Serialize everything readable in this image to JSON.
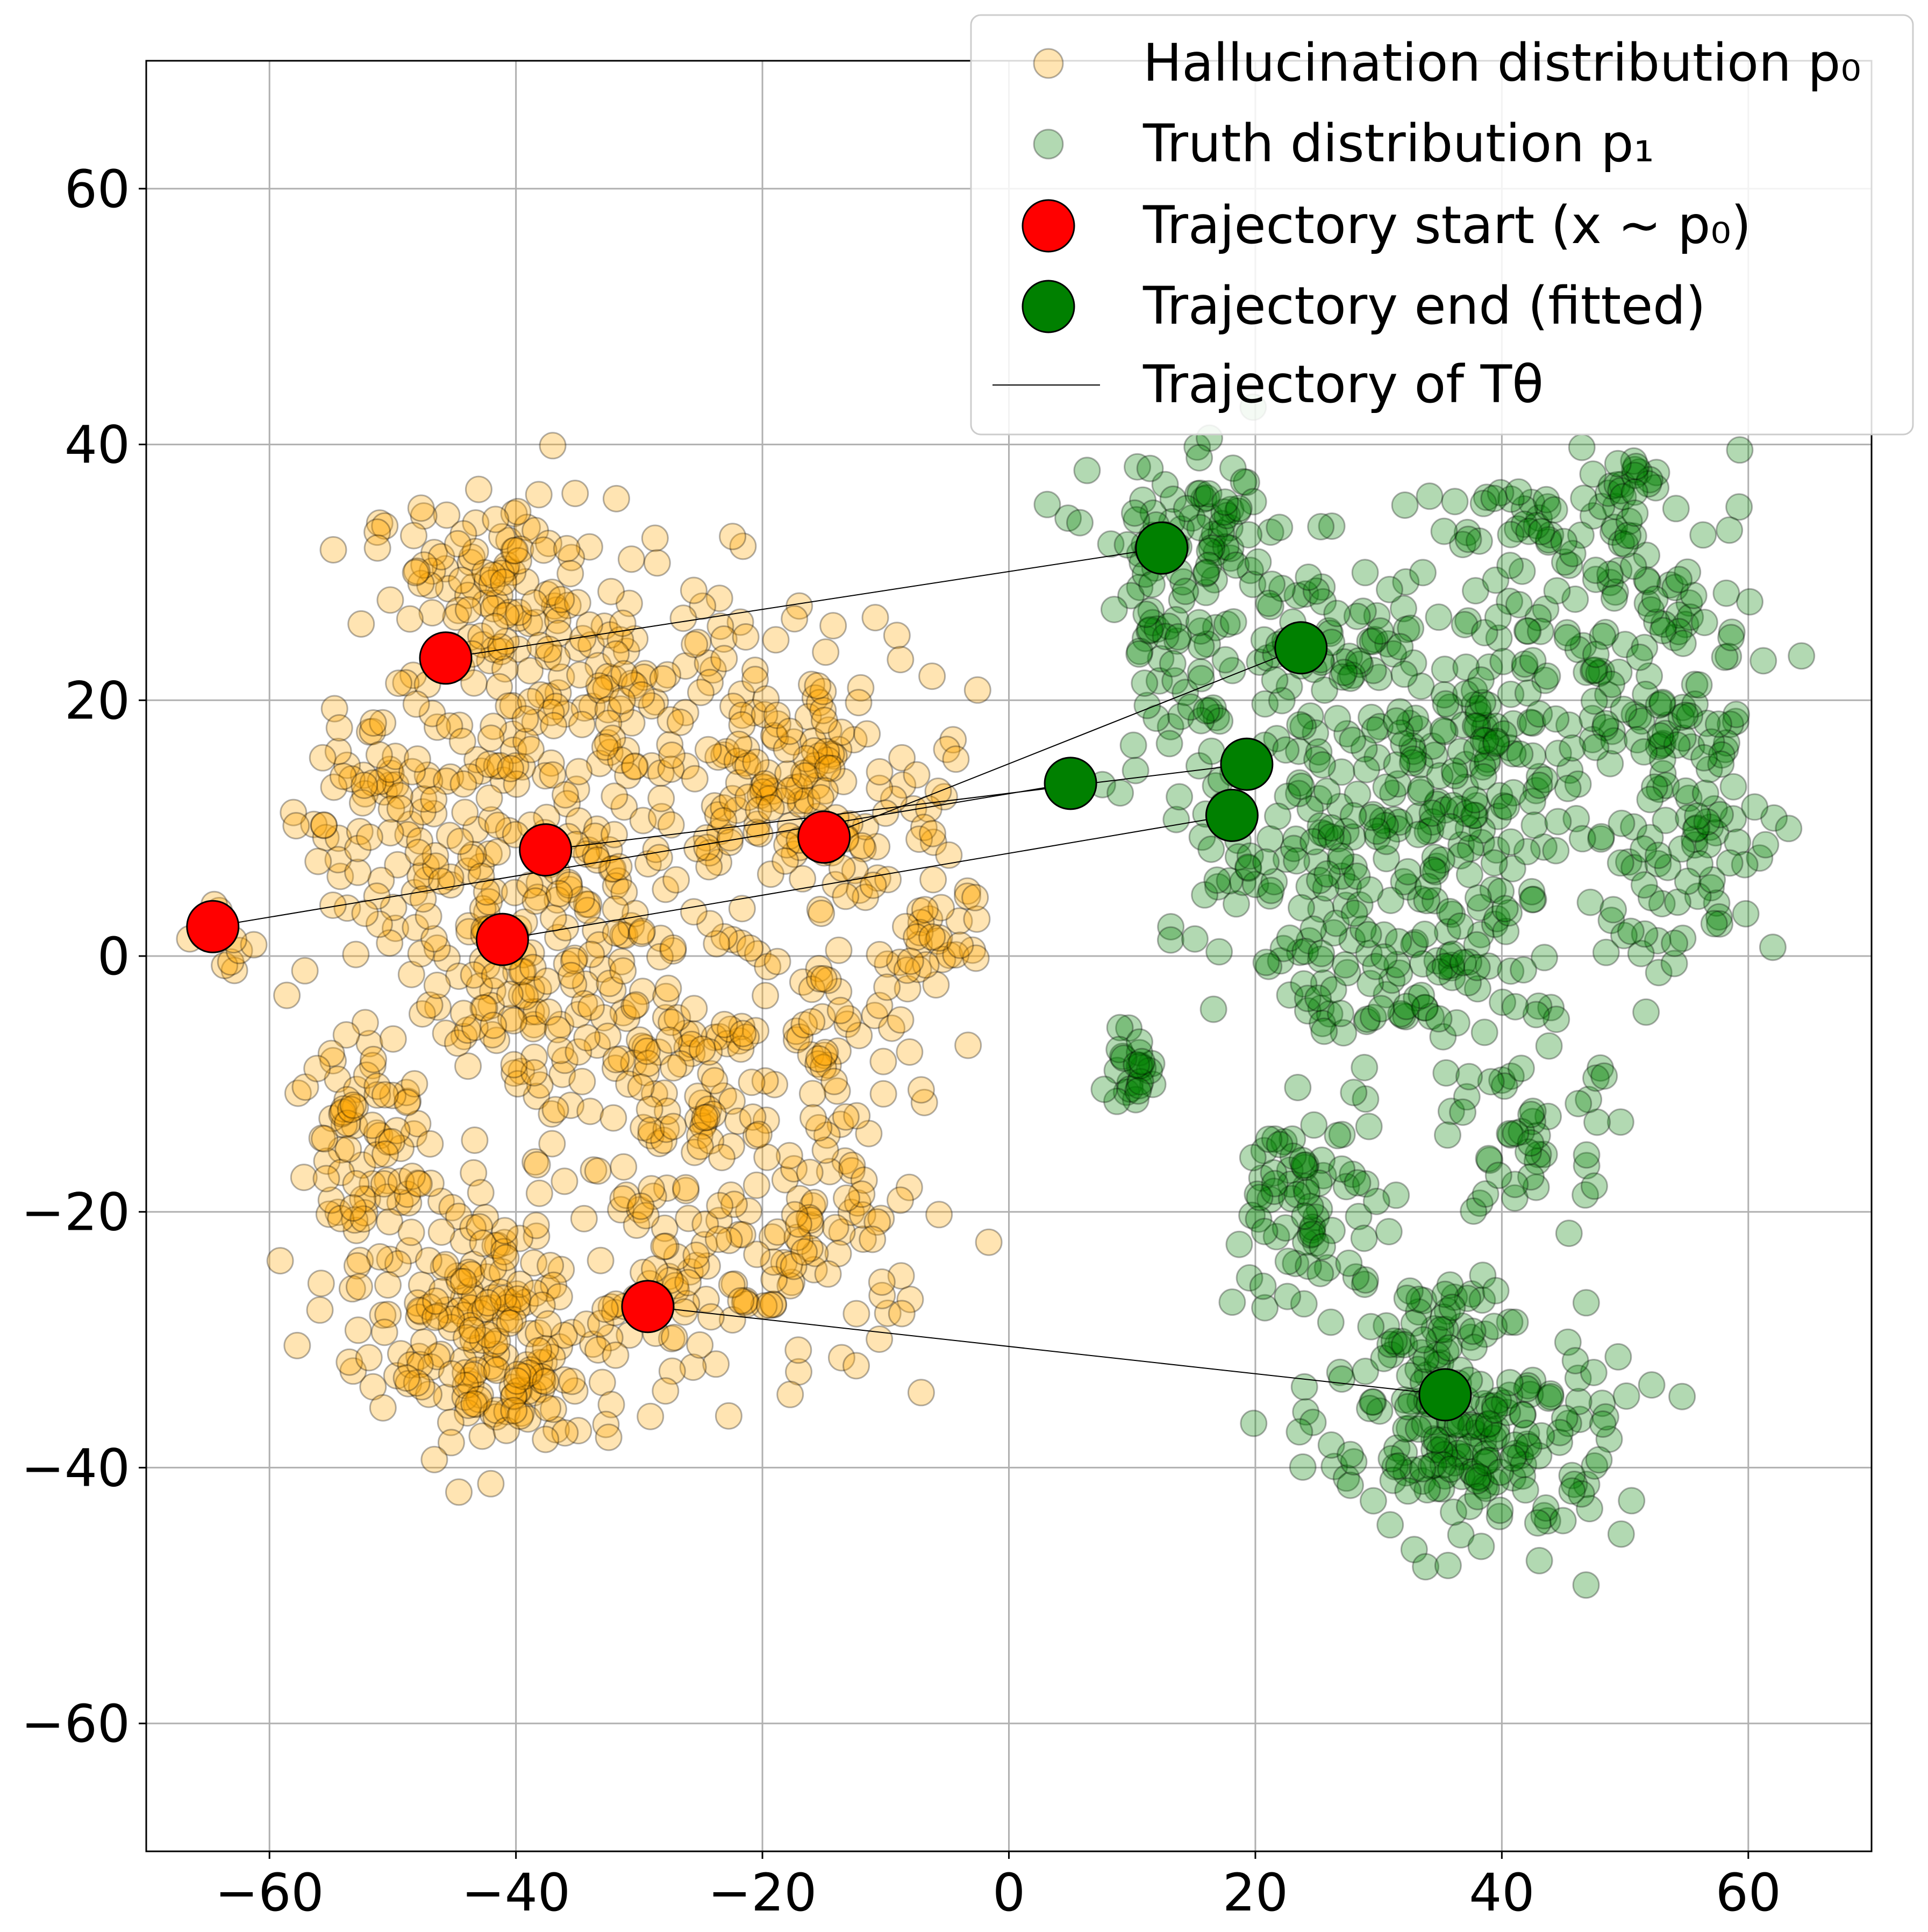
{
  "chart_data": {
    "type": "scatter",
    "title": "",
    "xlabel": "",
    "ylabel": "",
    "xlim": [
      -70,
      70
    ],
    "ylim": [
      -70,
      70
    ],
    "grid": true,
    "legend_position": "top-right",
    "x_ticks": [
      -60,
      -40,
      -20,
      0,
      20,
      40,
      60
    ],
    "y_ticks": [
      -60,
      -40,
      -20,
      0,
      20,
      40,
      60
    ],
    "x_tick_labels": [
      "−60",
      "−40",
      "−20",
      "0",
      "20",
      "40",
      "60"
    ],
    "y_tick_labels": [
      "−60",
      "−40",
      "−20",
      "0",
      "20",
      "40",
      "60"
    ],
    "legend": {
      "hallucination": "Hallucination distribution p₀",
      "truth": "Truth distribution p₁",
      "start": "Trajectory start (x ~ p₀)",
      "end": "Trajectory end (fitted)",
      "trajectory": "Trajectory of Tθ"
    },
    "colors": {
      "hallucination": "#ffa500",
      "truth": "#008000",
      "start": "#ff0000",
      "end": "#008000",
      "trajectory": "#000000",
      "grid": "#b0b0b0"
    },
    "clusters": {
      "hallucination": [
        {
          "cx": -42,
          "cy": 28,
          "sx": 5,
          "sy": 4,
          "n": 110
        },
        {
          "cx": -30,
          "cy": 22,
          "sx": 6,
          "sy": 5,
          "n": 80
        },
        {
          "cx": -50,
          "cy": 12,
          "sx": 4,
          "sy": 5,
          "n": 80
        },
        {
          "cx": -38,
          "cy": 8,
          "sx": 6,
          "sy": 6,
          "n": 120
        },
        {
          "cx": -20,
          "cy": 15,
          "sx": 6,
          "sy": 6,
          "n": 120
        },
        {
          "cx": -12,
          "cy": 10,
          "sx": 4,
          "sy": 4,
          "n": 60
        },
        {
          "cx": -40,
          "cy": -5,
          "sx": 8,
          "sy": 5,
          "n": 120
        },
        {
          "cx": -25,
          "cy": -10,
          "sx": 7,
          "sy": 6,
          "n": 110
        },
        {
          "cx": -52,
          "cy": -15,
          "sx": 3,
          "sy": 5,
          "n": 70
        },
        {
          "cx": -45,
          "cy": -25,
          "sx": 5,
          "sy": 5,
          "n": 90
        },
        {
          "cx": -40,
          "cy": -32,
          "sx": 5,
          "sy": 4,
          "n": 120
        },
        {
          "cx": -18,
          "cy": -22,
          "sx": 6,
          "sy": 5,
          "n": 110
        },
        {
          "cx": -6,
          "cy": 1,
          "sx": 2,
          "sy": 2,
          "n": 30
        },
        {
          "cx": -14,
          "cy": -8,
          "sx": 3,
          "sy": 3,
          "n": 30
        },
        {
          "cx": -64,
          "cy": 2,
          "sx": 1.5,
          "sy": 1.5,
          "n": 12
        },
        {
          "cx": -29,
          "cy": -28,
          "sx": 3,
          "sy": 3,
          "n": 30
        }
      ],
      "truth": [
        {
          "cx": 15,
          "cy": 33,
          "sx": 4,
          "sy": 3,
          "n": 70
        },
        {
          "cx": 14,
          "cy": 22,
          "sx": 3,
          "sy": 5,
          "n": 60
        },
        {
          "cx": 25,
          "cy": 24,
          "sx": 4,
          "sy": 4,
          "n": 70
        },
        {
          "cx": 40,
          "cy": 20,
          "sx": 6,
          "sy": 6,
          "n": 120
        },
        {
          "cx": 52,
          "cy": 25,
          "sx": 5,
          "sy": 6,
          "n": 90
        },
        {
          "cx": 55,
          "cy": 10,
          "sx": 4,
          "sy": 6,
          "n": 90
        },
        {
          "cx": 35,
          "cy": 8,
          "sx": 7,
          "sy": 6,
          "n": 140
        },
        {
          "cx": 22,
          "cy": 8,
          "sx": 5,
          "sy": 5,
          "n": 70
        },
        {
          "cx": 40,
          "cy": 34,
          "sx": 4,
          "sy": 2,
          "n": 30
        },
        {
          "cx": 10,
          "cy": -9,
          "sx": 1.5,
          "sy": 1.5,
          "n": 25
        },
        {
          "cx": 25,
          "cy": -20,
          "sx": 3,
          "sy": 5,
          "n": 80
        },
        {
          "cx": 42,
          "cy": -14,
          "sx": 3,
          "sy": 4,
          "n": 50
        },
        {
          "cx": 38,
          "cy": -38,
          "sx": 6,
          "sy": 4,
          "n": 180
        },
        {
          "cx": 34,
          "cy": -30,
          "sx": 3,
          "sy": 3,
          "n": 50
        },
        {
          "cx": 30,
          "cy": -2,
          "sx": 5,
          "sy": 3,
          "n": 50
        },
        {
          "cx": 51,
          "cy": 36,
          "sx": 2,
          "sy": 2,
          "n": 20
        }
      ]
    },
    "trajectories": [
      {
        "start": [
          -45.7,
          23.3
        ],
        "end": [
          12.4,
          31.9
        ]
      },
      {
        "start": [
          -64.6,
          2.3
        ],
        "end": [
          5.0,
          13.5
        ]
      },
      {
        "start": [
          -37.6,
          8.3
        ],
        "end": [
          19.3,
          15.0
        ]
      },
      {
        "start": [
          -15.0,
          9.3
        ],
        "end": [
          23.7,
          24.1
        ]
      },
      {
        "start": [
          -41.1,
          1.3
        ],
        "end": [
          18.1,
          11.0
        ]
      },
      {
        "start": [
          -29.3,
          -27.4
        ],
        "end": [
          35.4,
          -34.3
        ]
      }
    ]
  }
}
